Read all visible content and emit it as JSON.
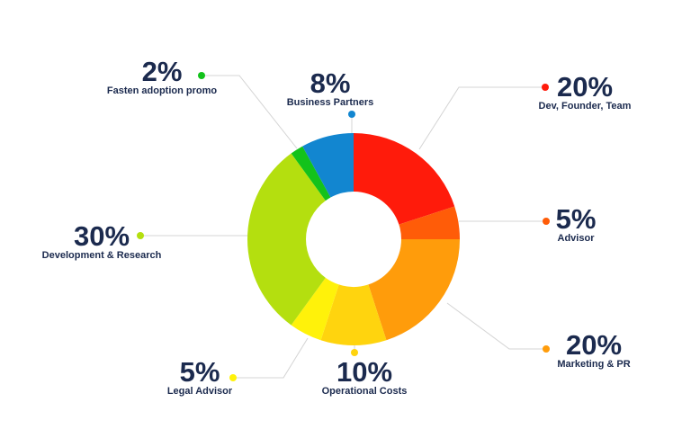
{
  "chart_data": {
    "type": "pie",
    "categories": [
      "Dev, Founder, Team",
      "Advisor",
      "Marketing & PR",
      "Operational Costs",
      "Legal Advisor",
      "Development & Research",
      "Fasten adoption promo",
      "Business Partners"
    ],
    "values": [
      20,
      5,
      20,
      10,
      5,
      30,
      2,
      8
    ],
    "value_labels": [
      "20%",
      "5%",
      "20%",
      "10%",
      "5%",
      "30%",
      "2%",
      "8%"
    ],
    "colors": [
      "#ff1b0b",
      "#ff5c08",
      "#ff9c0b",
      "#ffd40e",
      "#fff20a",
      "#b4df0f",
      "#13c21b",
      "#1286d0"
    ]
  }
}
